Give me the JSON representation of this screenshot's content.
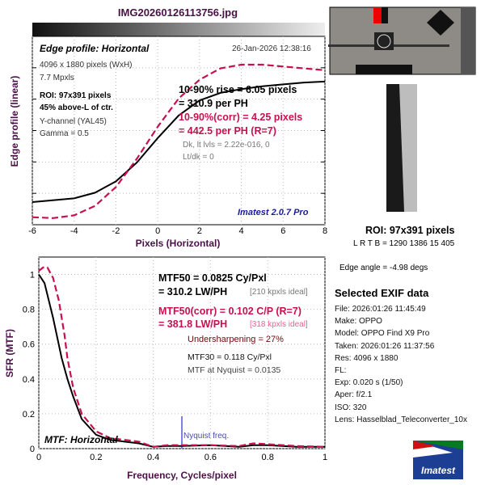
{
  "title": "IMG20260126113756.jpg",
  "top": {
    "heading": "Edge profile: Horizontal",
    "timestamp": "26-Jan-2026 12:38:16",
    "info": [
      "4096 x 1880 pixels (WxH)",
      "7.7 Mpxls"
    ],
    "roi": [
      "ROI: 97x391 pixels",
      "45% above-L of ctr."
    ],
    "channel": [
      "Y-channel  (YAL45)",
      "Gamma = 0.5"
    ],
    "rise": [
      "10-90% rise = 6.05 pixels",
      "= 310.9 per PH"
    ],
    "rise_corr": [
      "10-90%(corr) = 4.25 pixels",
      "= 442.5 per PH  (R=7)"
    ],
    "levels": [
      "Dk, lt lvls = 2.22e-016, 0",
      "Lt/dk = 0"
    ],
    "version": "Imatest 2.0.7 Pro"
  },
  "bottom": {
    "heading": "MTF: Horizontal",
    "mtf50": [
      "MTF50 = 0.0825 Cy/Pxl",
      "= 310.2 LW/PH"
    ],
    "mtf50_ideal": "[210 kpxls ideal]",
    "mtf50c": [
      "MTF50(corr) = 0.102 C/P  (R=7)",
      "= 381.8 LW/PH"
    ],
    "mtf50c_ideal": "[318 kpxls ideal]",
    "undersharpening": "Undersharpening = 27%",
    "mtf30": "MTF30 = 0.118 Cy/Pxl",
    "nyq": "MTF at Nyquist = 0.0135",
    "nyq_label": "Nyquist freq."
  },
  "side": {
    "roi": "ROI: 97x391 pixels",
    "lrtb": "L R  T B = 1290 1386  15 405",
    "edge_angle": "Edge angle = -4.98 degs",
    "exif_title": "Selected EXIF data",
    "exif": [
      "File:  2026:01:26 11:45:49",
      "Make:  OPPO",
      "Model:  OPPO Find X9 Pro",
      "Taken: 2026:01:26 11:37:56",
      "Res:   4096 x 1880",
      "FL:",
      "Exp:   0.020 s  (1/50)",
      "Aper:  f/2.1",
      "ISO:   320",
      "Lens:  Hasselblad_Teleconverter_10x"
    ],
    "logo": "Imatest"
  },
  "chart_data": [
    {
      "type": "line",
      "title": "Edge profile: Horizontal",
      "xlabel": "Pixels (Horizontal)",
      "ylabel": "Edge profile (linear)",
      "xlim": [
        -6,
        8
      ],
      "ylim": [
        0,
        1
      ],
      "xticks": [
        "-6",
        "-4",
        "-2",
        "0",
        "2",
        "4",
        "6",
        "8"
      ],
      "series": [
        {
          "name": "edge",
          "color": "#000000",
          "x": [
            -6,
            -4,
            -3,
            -2,
            -1,
            0,
            1,
            2,
            3,
            4,
            5,
            6,
            7,
            8
          ],
          "y": [
            0.12,
            0.14,
            0.17,
            0.23,
            0.33,
            0.46,
            0.58,
            0.66,
            0.7,
            0.72,
            0.735,
            0.745,
            0.755,
            0.76
          ]
        },
        {
          "name": "corrected",
          "color": "#c8104f",
          "x": [
            -6,
            -5,
            -4,
            -3,
            -2,
            -1,
            0,
            1,
            2,
            3,
            4,
            5,
            6,
            7,
            8
          ],
          "y": [
            0.04,
            0.035,
            0.05,
            0.1,
            0.2,
            0.35,
            0.52,
            0.67,
            0.77,
            0.83,
            0.85,
            0.85,
            0.84,
            0.83,
            0.82
          ]
        }
      ]
    },
    {
      "type": "line",
      "title": "MTF: Horizontal",
      "xlabel": "Frequency, Cycles/pixel",
      "ylabel": "SFR (MTF)",
      "xlim": [
        0,
        1
      ],
      "ylim": [
        0,
        1.1
      ],
      "xticks": [
        "0",
        "0.2",
        "0.4",
        "0.6",
        "0.8",
        "1"
      ],
      "yticks": [
        "0",
        "0.2",
        "0.4",
        "0.6",
        "0.8",
        "1"
      ],
      "series": [
        {
          "name": "MTF",
          "color": "#000000",
          "x": [
            0,
            0.02,
            0.05,
            0.08,
            0.1,
            0.12,
            0.15,
            0.2,
            0.25,
            0.3,
            0.35,
            0.4,
            0.45,
            0.5,
            0.6,
            0.7,
            0.75,
            0.8,
            0.9,
            1
          ],
          "y": [
            1,
            0.95,
            0.75,
            0.52,
            0.4,
            0.3,
            0.17,
            0.08,
            0.05,
            0.04,
            0.03,
            0.01,
            0.015,
            0.015,
            0.02,
            0.01,
            0.02,
            0.02,
            0.01,
            0.01
          ]
        },
        {
          "name": "MTF corrected",
          "color": "#c8104f",
          "x": [
            0,
            0.015,
            0.03,
            0.05,
            0.07,
            0.09,
            0.1,
            0.12,
            0.15,
            0.2,
            0.25,
            0.3,
            0.35,
            0.4,
            0.45,
            0.5,
            0.6,
            0.7,
            0.75,
            0.8,
            0.9,
            1
          ],
          "y": [
            1.02,
            1.04,
            1.04,
            0.98,
            0.85,
            0.65,
            0.52,
            0.35,
            0.2,
            0.1,
            0.06,
            0.05,
            0.04,
            0.01,
            0.02,
            0.02,
            0.02,
            0.015,
            0.03,
            0.025,
            0.015,
            0.01
          ]
        }
      ],
      "nyquist": 0.5
    }
  ]
}
